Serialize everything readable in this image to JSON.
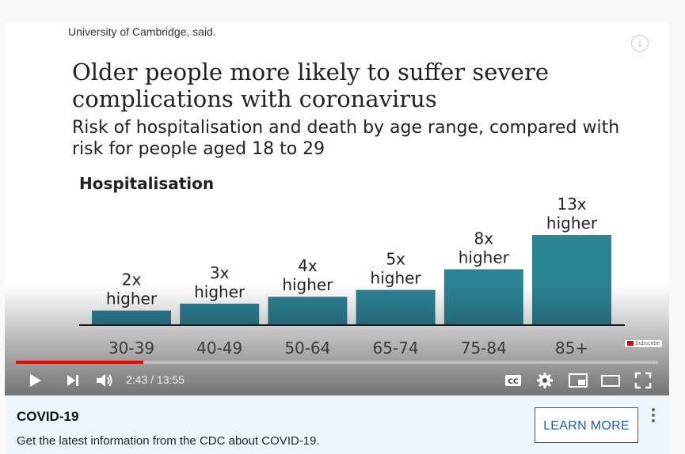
{
  "video": {
    "caption_top": "University of Cambridge, said.",
    "info_icon": "i",
    "chart": {
      "title": "Older people more likely to suffer severe complications with coronavirus",
      "subtitle": "Risk of hospitalisation and death by age range, compared with risk for people aged 18 to 29",
      "section": "Hospitalisation"
    },
    "subscribe_label": "Subscribe",
    "progress_fraction": 0.198
  },
  "chart_data": {
    "type": "bar",
    "categories": [
      "30-39",
      "40-49",
      "50-64",
      "65-74",
      "75-84",
      "85+"
    ],
    "values": [
      2,
      3,
      4,
      5,
      8,
      13
    ],
    "labels": [
      [
        "2x",
        "higher"
      ],
      [
        "3x",
        "higher"
      ],
      [
        "4x",
        "higher"
      ],
      [
        "5x",
        "higher"
      ],
      [
        "8x",
        "higher"
      ],
      [
        "13x",
        "higher"
      ]
    ],
    "title": "Older people more likely to suffer severe complications with coronavirus",
    "xlabel": "",
    "ylabel": "",
    "ylim": [
      0,
      13
    ],
    "color": "#2b8396"
  },
  "controls": {
    "time": "2:43 / 13:55",
    "icons": [
      "play-icon",
      "next-icon",
      "volume-icon",
      "cc-icon",
      "settings-icon",
      "miniplayer-icon",
      "theater-icon",
      "fullscreen-icon"
    ]
  },
  "info_panel": {
    "title": "COVID-19",
    "description": "Get the latest information from the CDC about COVID-19.",
    "button_label": "LEARN MORE"
  }
}
